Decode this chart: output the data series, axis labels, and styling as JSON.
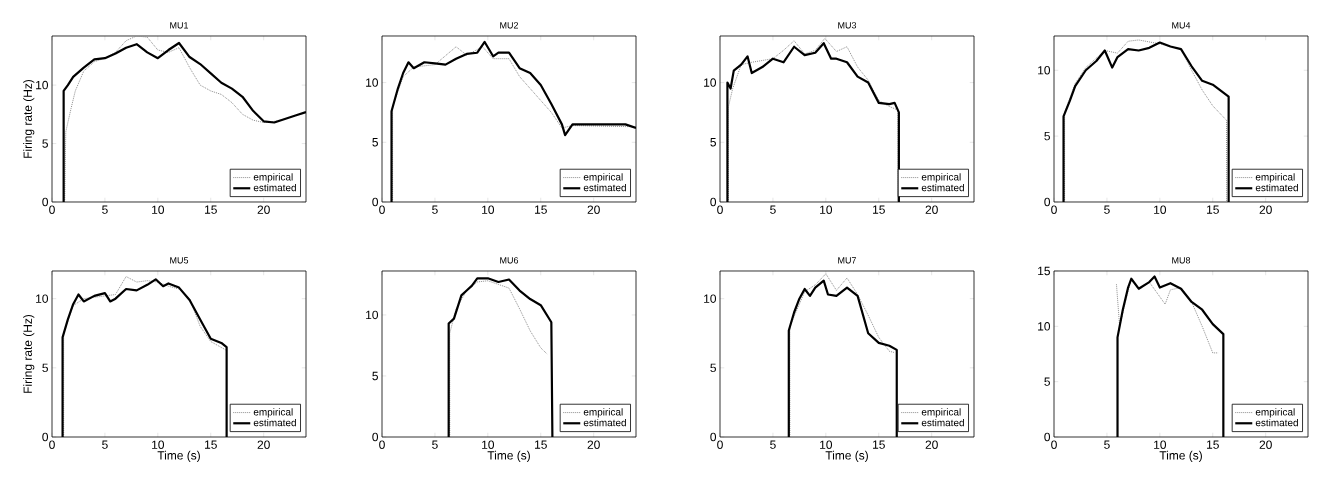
{
  "chart_data": [
    {
      "type": "line",
      "title": "MU1",
      "ylabel": "Firing rate (Hz)",
      "xlim": [
        0,
        24
      ],
      "ylim": [
        0,
        14.2
      ],
      "xticks": [
        0,
        5,
        10,
        15,
        20
      ],
      "yticks": [
        0,
        5,
        10
      ],
      "legend": "bottom right",
      "marker": "none",
      "series": [
        {
          "name": "empirical",
          "color": "#808080",
          "line_style": "dotted",
          "x": [
            1.2,
            1.3,
            1.8,
            2.2,
            3,
            4,
            5,
            6,
            7,
            8,
            9,
            10,
            11,
            12,
            13,
            14,
            15,
            16,
            17,
            18,
            19,
            20,
            21,
            22,
            23,
            24
          ],
          "values": [
            0,
            6,
            8,
            9.5,
            11.2,
            12,
            12.3,
            12.8,
            13.8,
            14.2,
            14.1,
            13,
            12.8,
            13.2,
            11.5,
            10,
            9.5,
            9.2,
            8.5,
            7.5,
            7,
            6.8,
            6.9,
            7.1,
            7.4,
            7.6
          ]
        },
        {
          "name": "estimated",
          "color": "#000000",
          "line_style": "solid",
          "x": [
            1.1,
            1.1,
            1.5,
            2,
            3,
            4,
            5,
            6,
            7,
            8,
            9,
            10,
            11,
            12,
            13,
            14,
            15,
            16,
            17,
            18,
            19,
            20,
            21,
            22,
            23,
            24
          ],
          "values": [
            0,
            9.5,
            10,
            10.7,
            11.5,
            12.2,
            12.3,
            12.7,
            13.2,
            13.5,
            12.8,
            12.3,
            13,
            13.6,
            12.4,
            11.8,
            11,
            10.2,
            9.7,
            9,
            7.8,
            6.9,
            6.8,
            7.1,
            7.4,
            7.7
          ]
        }
      ]
    },
    {
      "type": "line",
      "title": "MU2",
      "xlim": [
        0,
        24
      ],
      "ylim": [
        0,
        13.9
      ],
      "xticks": [
        0,
        5,
        10,
        15,
        20
      ],
      "yticks": [
        0,
        5,
        10
      ],
      "legend": "bottom right",
      "marker": "none",
      "series": [
        {
          "name": "empirical",
          "color": "#808080",
          "line_style": "dotted",
          "x": [
            1,
            1,
            2,
            3,
            5,
            7,
            8,
            9.5,
            10.5,
            12,
            13,
            14,
            15,
            16,
            17,
            18,
            24
          ],
          "values": [
            0,
            8,
            10.5,
            11.3,
            11.5,
            13,
            12.3,
            13,
            12,
            12,
            10.5,
            9.5,
            8.5,
            7.5,
            6.2,
            6.4,
            6.3
          ]
        },
        {
          "name": "estimated",
          "color": "#000000",
          "line_style": "solid",
          "x": [
            0.9,
            0.9,
            1.5,
            2,
            2.5,
            3,
            4,
            5,
            6,
            7,
            8,
            9,
            9.7,
            10.5,
            11,
            12,
            13,
            14,
            15,
            16,
            17,
            17.3,
            18,
            23,
            24
          ],
          "values": [
            0,
            7.6,
            9.5,
            10.8,
            11.7,
            11.2,
            11.7,
            11.6,
            11.5,
            12,
            12.4,
            12.5,
            13.4,
            12.2,
            12.5,
            12.5,
            11.2,
            10.8,
            9.8,
            8.2,
            6.5,
            5.6,
            6.5,
            6.5,
            6.2
          ]
        }
      ]
    },
    {
      "type": "line",
      "title": "MU3",
      "xlim": [
        0,
        24
      ],
      "ylim": [
        0,
        13.9
      ],
      "xticks": [
        0,
        5,
        10,
        15,
        20
      ],
      "yticks": [
        0,
        5,
        10
      ],
      "legend": "bottom right",
      "marker": "none",
      "series": [
        {
          "name": "empirical",
          "color": "#808080",
          "line_style": "dotted",
          "x": [
            0.8,
            0.8,
            1.2,
            2,
            3,
            5,
            6,
            7,
            8,
            9,
            9.9,
            11,
            12,
            13,
            14,
            15,
            16,
            16.8,
            16.8
          ],
          "values": [
            0,
            8,
            9.5,
            11.5,
            11.7,
            12,
            12.7,
            13.5,
            12.4,
            12.7,
            13.7,
            12.6,
            13,
            11.3,
            10.2,
            8.5,
            8,
            7.7,
            0
          ]
        },
        {
          "name": "estimated",
          "color": "#000000",
          "line_style": "solid",
          "x": [
            0.7,
            0.7,
            1,
            1.3,
            2,
            2.6,
            3,
            4,
            5,
            6,
            7,
            8,
            9,
            9.8,
            10.5,
            11,
            12,
            13,
            14,
            15,
            16,
            16.5,
            16.9,
            16.9
          ],
          "values": [
            0,
            10,
            9.5,
            11,
            11.5,
            12.2,
            10.8,
            11.3,
            12,
            11.7,
            13,
            12.3,
            12.5,
            13.3,
            12,
            12,
            11.7,
            10.5,
            10,
            8.3,
            8.2,
            8.3,
            7.5,
            0
          ]
        }
      ]
    },
    {
      "type": "line",
      "title": "MU4",
      "xlim": [
        0,
        24
      ],
      "ylim": [
        0,
        12.6
      ],
      "xticks": [
        0,
        5,
        10,
        15,
        20
      ],
      "yticks": [
        0,
        5,
        10
      ],
      "legend": "bottom right",
      "marker": "none",
      "series": [
        {
          "name": "empirical",
          "color": "#808080",
          "line_style": "dotted",
          "x": [
            1,
            1,
            2,
            3,
            4.8,
            6,
            7,
            8,
            10,
            12,
            13,
            14,
            15,
            16.3,
            16.3
          ],
          "values": [
            0,
            6.8,
            9,
            10.2,
            11.5,
            11.3,
            12.2,
            12.3,
            12,
            11.6,
            10,
            8.5,
            7.3,
            6.2,
            0
          ]
        },
        {
          "name": "estimated",
          "color": "#000000",
          "line_style": "solid",
          "x": [
            0.9,
            0.9,
            1.5,
            2,
            3,
            4,
            4.8,
            5.5,
            6,
            7,
            8,
            9,
            10,
            11,
            12,
            13,
            14,
            15,
            16,
            16.5,
            16.5
          ],
          "values": [
            0,
            6.5,
            7.7,
            8.8,
            10,
            10.7,
            11.5,
            10.2,
            11,
            11.6,
            11.5,
            11.7,
            12.1,
            11.8,
            11.6,
            10.3,
            9.2,
            8.9,
            8.3,
            8,
            0
          ]
        }
      ]
    },
    {
      "type": "line",
      "title": "MU5",
      "xlabel": "Time (s)",
      "ylabel": "Firing rate (Hz)",
      "xlim": [
        0,
        24
      ],
      "ylim": [
        0,
        12
      ],
      "xticks": [
        0,
        5,
        10,
        15,
        20
      ],
      "yticks": [
        0,
        5,
        10
      ],
      "legend": "bottom right",
      "marker": "none",
      "series": [
        {
          "name": "empirical",
          "color": "#808080",
          "line_style": "dotted",
          "x": [
            1.1,
            1.1,
            2,
            3,
            5,
            6,
            7,
            8,
            9,
            10,
            11,
            12,
            13,
            14,
            15,
            16.4
          ],
          "values": [
            0,
            7.5,
            9.5,
            10,
            10.2,
            10.3,
            11.6,
            11.2,
            11.3,
            11.2,
            10.9,
            10.7,
            10,
            8,
            6.9,
            6.3
          ]
        },
        {
          "name": "estimated",
          "color": "#000000",
          "line_style": "solid",
          "x": [
            1,
            1,
            1.5,
            2,
            2.5,
            3,
            4,
            5,
            5.5,
            6,
            7,
            8,
            9,
            9.8,
            10.5,
            11,
            12,
            13,
            14,
            15,
            16,
            16.5,
            16.5
          ],
          "values": [
            0,
            7.2,
            8.5,
            9.6,
            10.3,
            9.8,
            10.2,
            10.4,
            9.8,
            10,
            10.7,
            10.6,
            11,
            11.4,
            10.9,
            11.1,
            10.8,
            9.9,
            8.5,
            7.1,
            6.8,
            6.5,
            0
          ]
        }
      ]
    },
    {
      "type": "line",
      "title": "MU6",
      "xlabel": "Time (s)",
      "xlim": [
        0,
        24
      ],
      "ylim": [
        0,
        13.6
      ],
      "xticks": [
        0,
        5,
        10,
        15,
        20
      ],
      "yticks": [
        0,
        5,
        10
      ],
      "legend": "bottom right",
      "marker": "none",
      "series": [
        {
          "name": "empirical",
          "color": "#808080",
          "line_style": "dotted",
          "x": [
            6.4,
            6.4,
            7,
            8,
            9,
            10,
            11,
            12,
            13,
            14,
            15,
            15.6
          ],
          "values": [
            0,
            8.5,
            10.5,
            12,
            12.7,
            12.8,
            12.5,
            12.2,
            10.5,
            8.7,
            7.3,
            6.8
          ]
        },
        {
          "name": "estimated",
          "color": "#000000",
          "line_style": "solid",
          "x": [
            6.3,
            6.3,
            6.8,
            7.5,
            8,
            8.5,
            9,
            10,
            11,
            12,
            13,
            14,
            15,
            16,
            16.1
          ],
          "values": [
            0,
            9.3,
            9.7,
            11.6,
            12,
            12.4,
            13,
            13,
            12.7,
            12.9,
            12,
            11.3,
            10.8,
            9.4,
            0
          ]
        }
      ]
    },
    {
      "type": "line",
      "title": "MU7",
      "xlabel": "Time (s)",
      "xlim": [
        0,
        24
      ],
      "ylim": [
        0,
        12
      ],
      "xticks": [
        0,
        5,
        10,
        15,
        20
      ],
      "yticks": [
        0,
        5,
        10
      ],
      "legend": "bottom right",
      "marker": "none",
      "series": [
        {
          "name": "empirical",
          "color": "#808080",
          "line_style": "dotted",
          "x": [
            6.6,
            6.6,
            8,
            9,
            10,
            11,
            12,
            13,
            14,
            15,
            16,
            16.5
          ],
          "values": [
            0,
            8,
            10.5,
            11,
            11.8,
            10.6,
            11.5,
            10.3,
            8.8,
            7.2,
            6.2,
            6.1
          ]
        },
        {
          "name": "estimated",
          "color": "#000000",
          "line_style": "solid",
          "x": [
            6.5,
            6.5,
            7,
            7.5,
            8,
            8.5,
            9,
            9.8,
            10.2,
            11,
            12,
            13,
            14,
            15,
            16,
            16.7,
            16.7
          ],
          "values": [
            0,
            7.7,
            9,
            10,
            10.7,
            10.2,
            10.8,
            11.3,
            10.3,
            10.2,
            10.8,
            10.2,
            7.5,
            6.8,
            6.6,
            6.3,
            0
          ]
        }
      ]
    },
    {
      "type": "line",
      "title": "MU8",
      "xlabel": "Time (s)",
      "xlim": [
        0,
        24
      ],
      "ylim": [
        0,
        15
      ],
      "xticks": [
        0,
        5,
        10,
        15,
        20
      ],
      "yticks": [
        0,
        5,
        10,
        15
      ],
      "legend": "bottom right",
      "marker": "none",
      "series": [
        {
          "name": "empirical",
          "color": "#808080",
          "line_style": "dotted",
          "x": [
            5.9,
            6.2,
            6.7,
            7.3,
            8,
            9,
            10.5,
            11,
            12,
            13,
            14,
            15,
            15.5
          ],
          "values": [
            13.8,
            10,
            12,
            14.3,
            13.3,
            14,
            12,
            13.3,
            13.5,
            12.2,
            10,
            7.6,
            7.6
          ]
        },
        {
          "name": "estimated",
          "color": "#000000",
          "line_style": "solid",
          "x": [
            6,
            6,
            6.5,
            7,
            7.3,
            8,
            9,
            9.5,
            10,
            11,
            12,
            13,
            14,
            15,
            16,
            16
          ],
          "values": [
            0,
            9,
            11.5,
            13.5,
            14.3,
            13.4,
            14,
            14.5,
            13.5,
            13.9,
            13.4,
            12.2,
            11.5,
            10.2,
            9.3,
            0
          ]
        }
      ]
    }
  ]
}
